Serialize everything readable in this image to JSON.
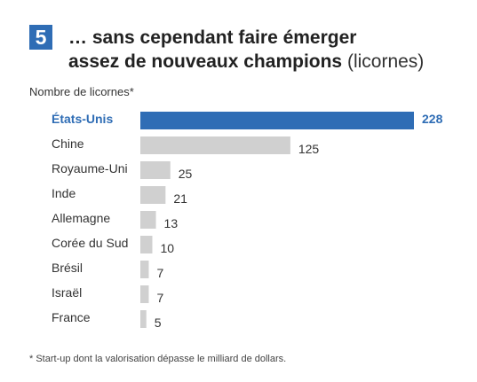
{
  "badge_number": "5",
  "title_bold_line1": "… sans cependant faire émerger",
  "title_bold_line2": "assez de nouveaux champions",
  "title_light": "(licornes)",
  "footnote": "* Start-up dont la valorisation dépasse le milliard de dollars.",
  "colors": {
    "accent": "#2f6db5",
    "bar": "#d0d0d0",
    "text": "#333333"
  },
  "chart_data": {
    "type": "bar",
    "orientation": "horizontal",
    "ylabel": "Nombre de licornes*",
    "categories": [
      "États-Unis",
      "Chine",
      "Royaume-Uni",
      "Inde",
      "Allemagne",
      "Corée du Sud",
      "Brésil",
      "Israël",
      "France"
    ],
    "values": [
      228,
      125,
      25,
      21,
      13,
      10,
      7,
      7,
      5
    ],
    "highlight_index": 0,
    "xlim": [
      0,
      228
    ],
    "grid": false,
    "legend": false,
    "data_labels": true
  }
}
